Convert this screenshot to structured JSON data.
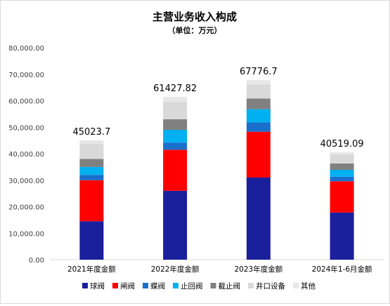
{
  "chart_data": {
    "type": "bar",
    "stacked": true,
    "title": "主营业务收入构成",
    "subtitle": "（单位：万元）",
    "xlabel": "",
    "ylabel": "",
    "ylim": [
      0,
      80000
    ],
    "yticks": [
      "0.00",
      "10,000.00",
      "20,000.00",
      "30,000.00",
      "40,000.00",
      "50,000.00",
      "60,000.00",
      "70,000.00",
      "80,000.00"
    ],
    "ytick_values": [
      0,
      10000,
      20000,
      30000,
      40000,
      50000,
      60000,
      70000,
      80000
    ],
    "grid": false,
    "legend_position": "bottom",
    "categories": [
      "2021年度金额",
      "2022年度金额",
      "2023年度金额",
      "2024年1-6月金额"
    ],
    "totals": [
      "45023.7",
      "61427.82",
      "67776.7",
      "40519.09"
    ],
    "series": [
      {
        "name": "球阀",
        "color": "#1a1f9c",
        "values": [
          14500,
          26000,
          31000,
          17800
        ]
      },
      {
        "name": "闸阀",
        "color": "#ff0000",
        "values": [
          15500,
          15500,
          17300,
          11800
        ]
      },
      {
        "name": "蝶阀",
        "color": "#1a6fcc",
        "values": [
          2000,
          2700,
          3500,
          1700
        ]
      },
      {
        "name": "止回阀",
        "color": "#00b0f0",
        "values": [
          3000,
          4800,
          5000,
          2600
        ]
      },
      {
        "name": "截止阀",
        "color": "#808080",
        "values": [
          3000,
          4000,
          4000,
          2400
        ]
      },
      {
        "name": "井口设备",
        "color": "#d9d9d9",
        "values": [
          5800,
          6500,
          5300,
          3300
        ]
      },
      {
        "name": "其他",
        "color": "#e7e7e7",
        "values": [
          1223.7,
          1927.82,
          1676.7,
          919.09
        ]
      }
    ]
  }
}
